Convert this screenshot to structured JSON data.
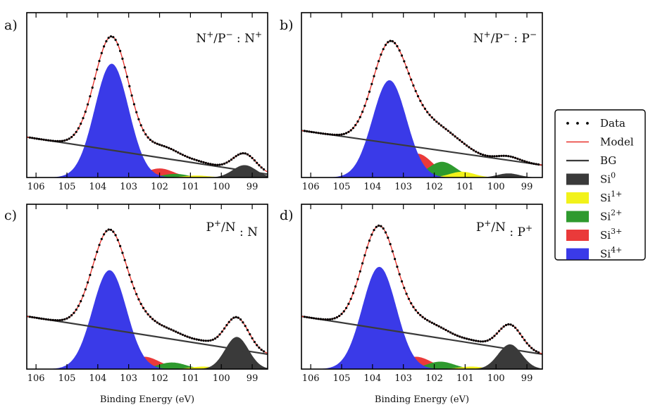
{
  "chart_data": {
    "type": "area",
    "xlabel": "Binding Energy (eV)",
    "xlim": [
      106.3,
      98.5
    ],
    "xticks": [
      106,
      105,
      104,
      103,
      102,
      101,
      100,
      99
    ],
    "legend": {
      "placement": "right",
      "entries": [
        {
          "key": "data",
          "label": "Data",
          "sup": "",
          "style": "dots",
          "color": "#000000"
        },
        {
          "key": "model",
          "label": "Model",
          "sup": "",
          "style": "line",
          "color": "#e8312a"
        },
        {
          "key": "bg",
          "label": "BG",
          "sup": "",
          "style": "line",
          "color": "#3a3a3a"
        },
        {
          "key": "si0",
          "label": "Si",
          "sup": "0",
          "style": "box",
          "color": "#3a3a3a"
        },
        {
          "key": "si1",
          "label": "Si",
          "sup": "1+",
          "style": "box",
          "color": "#f2f21a"
        },
        {
          "key": "si2",
          "label": "Si",
          "sup": "2+",
          "style": "box",
          "color": "#2e9a2e"
        },
        {
          "key": "si3",
          "label": "Si",
          "sup": "3+",
          "style": "box",
          "color": "#ea3a3a"
        },
        {
          "key": "si4",
          "label": "Si",
          "sup": "4+",
          "style": "box",
          "color": "#3a3ae8"
        }
      ]
    },
    "panels": [
      {
        "label": "a)",
        "condition": {
          "a": "N",
          "as": "+",
          "b": "P",
          "bs": "−",
          "c": "N",
          "cs": "+"
        },
        "bg": {
          "start": 0.245,
          "end": 0.02
        },
        "components": [
          {
            "key": "si3",
            "center": 102.0,
            "height": 0.055,
            "width": 0.45
          },
          {
            "key": "si2",
            "center": 101.5,
            "height": 0.022,
            "width": 0.4
          },
          {
            "key": "si1",
            "center": 100.8,
            "height": 0.012,
            "width": 0.4
          },
          {
            "key": "si0",
            "center": 99.25,
            "height": 0.075,
            "width": 0.38
          },
          {
            "key": "si4",
            "center": 103.55,
            "height": 0.69,
            "width": 0.55
          }
        ],
        "bumps": [
          {
            "center": 99.25,
            "height": 0.03,
            "width": 0.35
          }
        ]
      },
      {
        "label": "b)",
        "condition": {
          "a": "N",
          "as": "+",
          "b": "P",
          "bs": "−",
          "c": "P",
          "cs": "−"
        },
        "bg": {
          "start": 0.285,
          "end": 0.075
        },
        "components": [
          {
            "key": "si3",
            "center": 102.55,
            "height": 0.145,
            "width": 0.5
          },
          {
            "key": "si2",
            "center": 101.75,
            "height": 0.095,
            "width": 0.45
          },
          {
            "key": "si1",
            "center": 101.1,
            "height": 0.035,
            "width": 0.4
          },
          {
            "key": "si0",
            "center": 99.6,
            "height": 0.025,
            "width": 0.35
          },
          {
            "key": "si4",
            "center": 103.45,
            "height": 0.59,
            "width": 0.55
          }
        ],
        "bumps": []
      },
      {
        "label": "c)",
        "condition": {
          "a": "P",
          "as": "+",
          "b": "N",
          "bs": "",
          "c": "N",
          "cs": ""
        },
        "bg": {
          "start": 0.32,
          "end": 0.09
        },
        "components": [
          {
            "key": "si3",
            "center": 102.5,
            "height": 0.075,
            "width": 0.5
          },
          {
            "key": "si2",
            "center": 101.6,
            "height": 0.04,
            "width": 0.45
          },
          {
            "key": "si1",
            "center": 100.6,
            "height": 0.015,
            "width": 0.4
          },
          {
            "key": "si0",
            "center": 99.5,
            "height": 0.195,
            "width": 0.38
          },
          {
            "key": "si4",
            "center": 103.62,
            "height": 0.6,
            "width": 0.55
          }
        ],
        "bumps": []
      },
      {
        "label": "d)",
        "condition": {
          "a": "P",
          "as": "+",
          "b": "N",
          "bs": "",
          "c": "P",
          "cs": "+"
        },
        "bg": {
          "start": 0.32,
          "end": 0.09
        },
        "components": [
          {
            "key": "si3",
            "center": 102.6,
            "height": 0.075,
            "width": 0.5
          },
          {
            "key": "si2",
            "center": 101.8,
            "height": 0.045,
            "width": 0.45
          },
          {
            "key": "si1",
            "center": 100.8,
            "height": 0.015,
            "width": 0.4
          },
          {
            "key": "si0",
            "center": 99.55,
            "height": 0.15,
            "width": 0.38
          },
          {
            "key": "si4",
            "center": 103.78,
            "height": 0.62,
            "width": 0.55
          }
        ],
        "bumps": []
      }
    ]
  }
}
